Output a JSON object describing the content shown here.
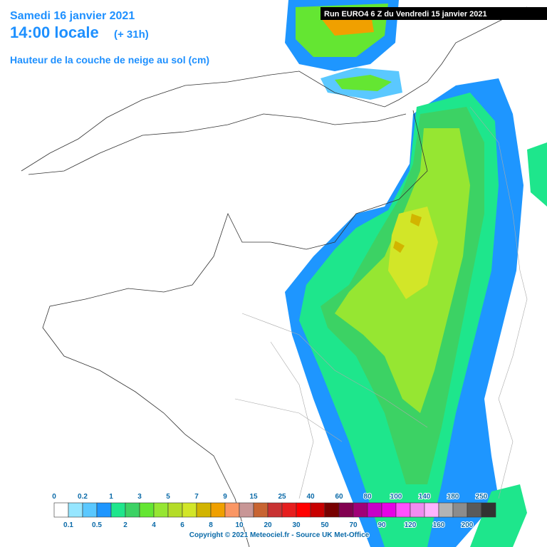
{
  "header": {
    "date": "Samedi 16 janvier 2021",
    "time": "14:00 locale",
    "offset": "(+ 31h)",
    "subtitle": "Hauteur de la couche de neige au sol (cm)",
    "run": "Run EURO4 6 Z du Vendredi 15 janvier 2021"
  },
  "legend": {
    "top_labels": [
      "0",
      "0.2",
      "1",
      "3",
      "5",
      "7",
      "9",
      "15",
      "25",
      "40",
      "60",
      "80",
      "100",
      "140",
      "180",
      "250"
    ],
    "bottom_labels": [
      "0.1",
      "0.5",
      "2",
      "4",
      "6",
      "8",
      "10",
      "20",
      "30",
      "50",
      "70",
      "90",
      "120",
      "160",
      "200"
    ],
    "colors": [
      "#ffffff",
      "#96e6ff",
      "#5ac8ff",
      "#1e96ff",
      "#1ee68c",
      "#3cd264",
      "#64e632",
      "#96e632",
      "#b4dc28",
      "#d2e628",
      "#d2b400",
      "#f0a000",
      "#fa9664",
      "#c89696",
      "#c86432",
      "#c83232",
      "#e61e1e",
      "#ff0000",
      "#c80000",
      "#780000",
      "#820050",
      "#a00078",
      "#c800c8",
      "#e600e6",
      "#ff50ff",
      "#f08cf0",
      "#ffb4ff",
      "#b4b4b4",
      "#8c8c8c",
      "#5a5a5a",
      "#323232"
    ]
  },
  "footer": {
    "copyright": "Copyright © 2021 Meteociel.fr - Source UK Met-Office"
  }
}
